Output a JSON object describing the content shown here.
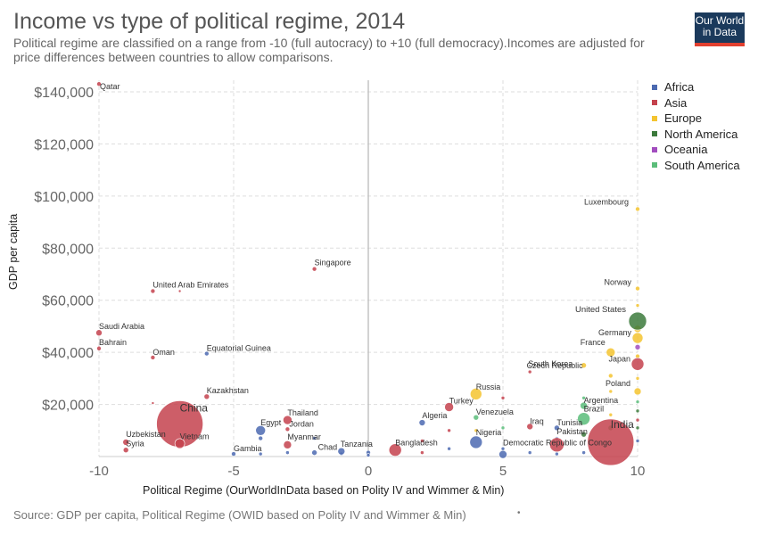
{
  "header": {
    "title": "Income vs type of political regime, 2014",
    "subtitle": "Political regime are classified on a range from -10 (full autocracy) to +10 (full democracy).Incomes are adjusted for price differences between countries to allow comparisons.",
    "logo_line1": "Our World",
    "logo_line2": "in Data"
  },
  "footer": {
    "source": "Source: GDP per capita, Political Regime (OWID based on Polity IV and Wimmer & Min)",
    "dot": "•"
  },
  "colors": {
    "Africa": "#4c6ab1",
    "Asia": "#c4424d",
    "Europe": "#f4c430",
    "North America": "#3c7a3c",
    "Oceania": "#a24dbf",
    "South America": "#5bbd7a",
    "grid": "#dddddd",
    "zero_line": "#bbbbbb"
  },
  "chart_data": {
    "type": "scatter",
    "xlabel": "Political Regime (OurWorldInData based on Polity IV and Wimmer & Min)",
    "ylabel": "GDP per capita",
    "xlim": [
      -10,
      10
    ],
    "ylim": [
      0,
      145000
    ],
    "x_ticks": [
      -10,
      -5,
      0,
      5,
      10
    ],
    "x_tick_labels": [
      "-10",
      "-5",
      "0",
      "5",
      "10"
    ],
    "y_ticks": [
      20000,
      40000,
      60000,
      80000,
      100000,
      120000,
      140000
    ],
    "y_tick_labels": [
      "$20,000",
      "$40,000",
      "$60,000",
      "$80,000",
      "$100,000",
      "$120,000",
      "$140,000"
    ],
    "grid": true,
    "legend_position": "right",
    "legend": [
      "Africa",
      "Asia",
      "Europe",
      "North America",
      "Oceania",
      "South America"
    ],
    "labeled_points": [
      {
        "label": "Qatar",
        "x": -10,
        "y": 143000,
        "region": "Asia",
        "r": 2.5
      },
      {
        "label": "Singapore",
        "x": -2,
        "y": 72000,
        "region": "Asia",
        "r": 2.5
      },
      {
        "label": "United Arab Emirates",
        "x": -8,
        "y": 63500,
        "region": "Asia",
        "r": 2.5
      },
      {
        "label": "Saudi Arabia",
        "x": -10,
        "y": 47500,
        "region": "Asia",
        "r": 3.5
      },
      {
        "label": "Bahrain",
        "x": -10,
        "y": 41500,
        "region": "Asia",
        "r": 2.5
      },
      {
        "label": "Oman",
        "x": -8,
        "y": 38000,
        "region": "Asia",
        "r": 2.5
      },
      {
        "label": "Equatorial Guinea",
        "x": -6,
        "y": 39500,
        "region": "Africa",
        "r": 2.5
      },
      {
        "label": "Kazakhstan",
        "x": -6,
        "y": 23000,
        "region": "Asia",
        "r": 3
      },
      {
        "label": "China",
        "x": -7,
        "y": 12500,
        "region": "Asia",
        "r": 26
      },
      {
        "label": "Uzbekistan",
        "x": -9,
        "y": 5500,
        "region": "Asia",
        "r": 3.5
      },
      {
        "label": "Syria",
        "x": -9,
        "y": 2500,
        "region": "Asia",
        "r": 3
      },
      {
        "label": "Vietnam",
        "x": -7,
        "y": 5000,
        "region": "Asia",
        "r": 5.5
      },
      {
        "label": "Thailand",
        "x": -3,
        "y": 14000,
        "region": "Asia",
        "r": 5
      },
      {
        "label": "Egypt",
        "x": -4,
        "y": 10000,
        "region": "Africa",
        "r": 5.5
      },
      {
        "label": "Jordan",
        "x": -3,
        "y": 10500,
        "region": "Asia",
        "r": 2.5
      },
      {
        "label": "Myanmar",
        "x": -3,
        "y": 4500,
        "region": "Asia",
        "r": 4.5
      },
      {
        "label": "Gambia",
        "x": -5,
        "y": 1000,
        "region": "Africa",
        "r": 2.5
      },
      {
        "label": "Chad",
        "x": -2,
        "y": 1500,
        "region": "Africa",
        "r": 3
      },
      {
        "label": "Tanzania",
        "x": -1,
        "y": 2000,
        "region": "Africa",
        "r": 4
      },
      {
        "label": "Bangladesh",
        "x": 1,
        "y": 2500,
        "region": "Asia",
        "r": 7
      },
      {
        "label": "Algeria",
        "x": 2,
        "y": 13000,
        "region": "Africa",
        "r": 3.5
      },
      {
        "label": "Turkey",
        "x": 3,
        "y": 19000,
        "region": "Asia",
        "r": 5
      },
      {
        "label": "Russia",
        "x": 4,
        "y": 24000,
        "region": "Europe",
        "r": 6.5
      },
      {
        "label": "Venezuela",
        "x": 4,
        "y": 15000,
        "region": "South America",
        "r": 3
      },
      {
        "label": "Nigeria",
        "x": 4,
        "y": 5500,
        "region": "Africa",
        "r": 7
      },
      {
        "label": "Democratic Republic of Congo",
        "x": 5,
        "y": 800,
        "region": "Africa",
        "r": 4.5
      },
      {
        "label": "Iraq",
        "x": 6,
        "y": 11500,
        "region": "Asia",
        "r": 3.5
      },
      {
        "label": "South Korea",
        "x": 6,
        "y": 32500,
        "region": "Asia",
        "r": 2
      },
      {
        "label": "Czech Republic",
        "x": 8,
        "y": 35000,
        "region": "Europe",
        "r": 3
      },
      {
        "label": "Tunisia",
        "x": 7,
        "y": 11000,
        "region": "Africa",
        "r": 3
      },
      {
        "label": "Pakistan",
        "x": 7,
        "y": 4500,
        "region": "Asia",
        "r": 8
      },
      {
        "label": "Argentina",
        "x": 8,
        "y": 19500,
        "region": "South America",
        "r": 4
      },
      {
        "label": "Brazil",
        "x": 8,
        "y": 14500,
        "region": "South America",
        "r": 7
      },
      {
        "label": "France",
        "x": 9,
        "y": 40000,
        "region": "Europe",
        "r": 5
      },
      {
        "label": "India",
        "x": 9,
        "y": 5500,
        "region": "Asia",
        "r": 26
      },
      {
        "label": "Luxembourg",
        "x": 10,
        "y": 95000,
        "region": "Europe",
        "r": 2.5
      },
      {
        "label": "Norway",
        "x": 10,
        "y": 64500,
        "region": "Europe",
        "r": 2.5
      },
      {
        "label": "United States",
        "x": 10,
        "y": 52000,
        "region": "North America",
        "r": 10
      },
      {
        "label": "Germany",
        "x": 10,
        "y": 45500,
        "region": "Europe",
        "r": 6
      },
      {
        "label": "Japan",
        "x": 10,
        "y": 35500,
        "region": "Asia",
        "r": 7
      },
      {
        "label": "Poland",
        "x": 10,
        "y": 25000,
        "region": "Europe",
        "r": 4
      }
    ],
    "other_points": [
      {
        "x": -7,
        "y": 63500,
        "region": "Asia",
        "r": 1.5
      },
      {
        "x": -8,
        "y": 20500,
        "region": "Asia",
        "r": 1.5
      },
      {
        "x": -4,
        "y": 7000,
        "region": "Africa",
        "r": 2.5
      },
      {
        "x": -4,
        "y": 1000,
        "region": "Africa",
        "r": 2
      },
      {
        "x": -3,
        "y": 1500,
        "region": "Africa",
        "r": 2
      },
      {
        "x": -2,
        "y": 7000,
        "region": "Africa",
        "r": 2
      },
      {
        "x": -1,
        "y": 1000,
        "region": "Africa",
        "r": 2
      },
      {
        "x": 0,
        "y": 1500,
        "region": "Africa",
        "r": 2.5
      },
      {
        "x": 0,
        "y": 500,
        "region": "Africa",
        "r": 2
      },
      {
        "x": 2,
        "y": 6000,
        "region": "Asia",
        "r": 2
      },
      {
        "x": 2,
        "y": 1500,
        "region": "Asia",
        "r": 2
      },
      {
        "x": 3,
        "y": 10000,
        "region": "Asia",
        "r": 2
      },
      {
        "x": 3,
        "y": 3000,
        "region": "Africa",
        "r": 2
      },
      {
        "x": 4,
        "y": 10000,
        "region": "Europe",
        "r": 2
      },
      {
        "x": 5,
        "y": 22500,
        "region": "Asia",
        "r": 2
      },
      {
        "x": 5,
        "y": 11000,
        "region": "South America",
        "r": 2
      },
      {
        "x": 5,
        "y": 3000,
        "region": "Africa",
        "r": 2
      },
      {
        "x": 6,
        "y": 1500,
        "region": "Africa",
        "r": 2
      },
      {
        "x": 7,
        "y": 7000,
        "region": "Africa",
        "r": 2
      },
      {
        "x": 7,
        "y": 1000,
        "region": "Africa",
        "r": 2
      },
      {
        "x": 8,
        "y": 22500,
        "region": "South America",
        "r": 2
      },
      {
        "x": 8,
        "y": 8500,
        "region": "North America",
        "r": 3
      },
      {
        "x": 8,
        "y": 1500,
        "region": "Africa",
        "r": 2
      },
      {
        "x": 9,
        "y": 31000,
        "region": "Europe",
        "r": 2.5
      },
      {
        "x": 9,
        "y": 25000,
        "region": "Europe",
        "r": 2
      },
      {
        "x": 9,
        "y": 16000,
        "region": "Europe",
        "r": 2
      },
      {
        "x": 9,
        "y": 11000,
        "region": "South America",
        "r": 3
      },
      {
        "x": 10,
        "y": 58000,
        "region": "Europe",
        "r": 2
      },
      {
        "x": 10,
        "y": 49000,
        "region": "Europe",
        "r": 4
      },
      {
        "x": 10,
        "y": 42000,
        "region": "Oceania",
        "r": 3
      },
      {
        "x": 10,
        "y": 38500,
        "region": "Europe",
        "r": 2.5
      },
      {
        "x": 10,
        "y": 30000,
        "region": "Europe",
        "r": 2
      },
      {
        "x": 10,
        "y": 21000,
        "region": "South America",
        "r": 2
      },
      {
        "x": 10,
        "y": 17500,
        "region": "North America",
        "r": 2
      },
      {
        "x": 10,
        "y": 14000,
        "region": "Asia",
        "r": 2
      },
      {
        "x": 10,
        "y": 11000,
        "region": "North America",
        "r": 2
      },
      {
        "x": 10,
        "y": 6000,
        "region": "Africa",
        "r": 2
      }
    ]
  }
}
